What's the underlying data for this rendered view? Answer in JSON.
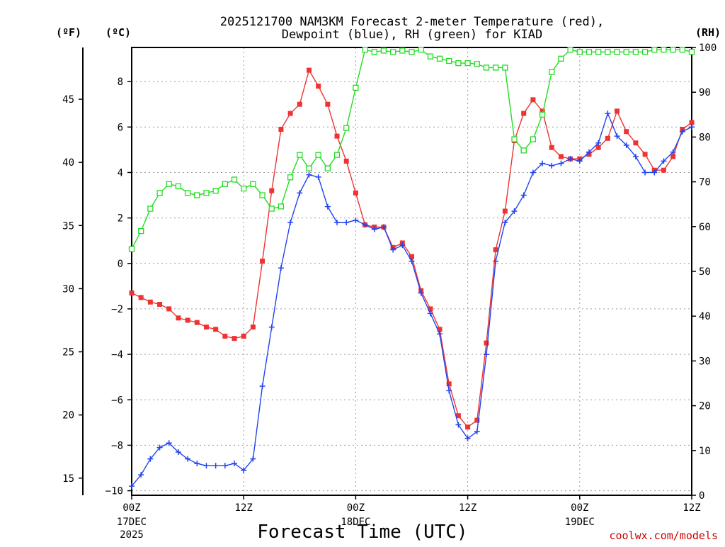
{
  "chart_data": {
    "type": "line",
    "title_line1": "2025121700 NAM3KM Forecast 2-meter Temperature (red),",
    "title_line2": "Dewpoint (blue), RH (green) for KIAD",
    "xlabel": "Forecast Time (UTC)",
    "credit": "coolwx.com/models",
    "units": {
      "fahrenheit": "(ºF)",
      "celsius": "(ºC)",
      "rh": "(RH)"
    },
    "x_unit": "hours from 00Z 17DEC 2025",
    "xlim": [
      0,
      60
    ],
    "ylim_celsius": [
      -10.2,
      9.5
    ],
    "ylim_rh": [
      0,
      100
    ],
    "grid": true,
    "x_ticks": [
      {
        "value": 0,
        "label": "00Z",
        "label2": "17DEC",
        "label3": "2025"
      },
      {
        "value": 12,
        "label": "12Z",
        "label2": "",
        "label3": ""
      },
      {
        "value": 24,
        "label": "00Z",
        "label2": "18DEC",
        "label3": ""
      },
      {
        "value": 36,
        "label": "12Z",
        "label2": "",
        "label3": ""
      },
      {
        "value": 48,
        "label": "00Z",
        "label2": "19DEC",
        "label3": ""
      },
      {
        "value": 60,
        "label": "12Z",
        "label2": "",
        "label3": ""
      }
    ],
    "y_ticks_celsius": [
      -10,
      -8,
      -6,
      -4,
      -2,
      0,
      2,
      4,
      6,
      8
    ],
    "y_tick_labels_celsius": [
      "−10",
      "−8",
      "−6",
      "−4",
      "−2",
      "0",
      "2",
      "4",
      "6",
      "8"
    ],
    "y_ticks_fahrenheit": [
      15,
      20,
      25,
      30,
      35,
      40,
      45
    ],
    "y_ticks_rh": [
      0,
      10,
      20,
      30,
      40,
      50,
      60,
      70,
      80,
      90,
      100
    ],
    "series": [
      {
        "name": "Temperature",
        "color": "#ee3333",
        "marker": "filled-square",
        "axis": "celsius",
        "x": [
          0,
          1,
          2,
          3,
          4,
          5,
          6,
          7,
          8,
          9,
          10,
          11,
          12,
          13,
          14,
          15,
          16,
          17,
          18,
          19,
          20,
          21,
          22,
          23,
          24,
          25,
          26,
          27,
          28,
          29,
          30,
          31,
          32,
          33,
          34,
          35,
          36,
          37,
          38,
          39,
          40,
          41,
          42,
          43,
          44,
          45,
          46,
          47,
          48,
          49,
          50,
          51,
          52,
          53,
          54,
          55,
          56,
          57,
          58,
          59,
          60
        ],
        "values": [
          -1.3,
          -1.5,
          -1.7,
          -1.8,
          -2.0,
          -2.4,
          -2.5,
          -2.6,
          -2.8,
          -2.9,
          -3.2,
          -3.3,
          -3.2,
          -2.8,
          0.1,
          3.2,
          5.9,
          6.6,
          7.0,
          8.5,
          7.8,
          7.0,
          5.6,
          4.5,
          3.1,
          1.7,
          1.6,
          1.6,
          0.7,
          0.9,
          0.3,
          -1.2,
          -2.0,
          -2.9,
          -5.3,
          -6.7,
          -7.2,
          -6.9,
          -3.5,
          0.6,
          2.3,
          5.4,
          6.6,
          7.2,
          6.7,
          5.1,
          4.7,
          4.6,
          4.6,
          4.8,
          5.1,
          5.5,
          6.7,
          5.8,
          5.3,
          4.8,
          4.1,
          4.1,
          4.7,
          5.9,
          6.2
        ]
      },
      {
        "name": "Dewpoint",
        "color": "#2244ee",
        "marker": "plus",
        "axis": "celsius",
        "x": [
          0,
          1,
          2,
          3,
          4,
          5,
          6,
          7,
          8,
          9,
          10,
          11,
          12,
          13,
          14,
          15,
          16,
          17,
          18,
          19,
          20,
          21,
          22,
          23,
          24,
          25,
          26,
          27,
          28,
          29,
          30,
          31,
          32,
          33,
          34,
          35,
          36,
          37,
          38,
          39,
          40,
          41,
          42,
          43,
          44,
          45,
          46,
          47,
          48,
          49,
          50,
          51,
          52,
          53,
          54,
          55,
          56,
          57,
          58,
          59,
          60
        ],
        "values": [
          -9.8,
          -9.3,
          -8.6,
          -8.1,
          -7.9,
          -8.3,
          -8.6,
          -8.8,
          -8.9,
          -8.9,
          -8.9,
          -8.8,
          -9.1,
          -8.6,
          -5.4,
          -2.8,
          -0.2,
          1.8,
          3.1,
          3.9,
          3.8,
          2.5,
          1.8,
          1.8,
          1.9,
          1.7,
          1.5,
          1.6,
          0.6,
          0.8,
          0.1,
          -1.3,
          -2.2,
          -3.1,
          -5.6,
          -7.1,
          -7.7,
          -7.4,
          -4.0,
          0.1,
          1.8,
          2.3,
          3.0,
          4.0,
          4.4,
          4.3,
          4.4,
          4.6,
          4.5,
          4.9,
          5.3,
          6.6,
          5.6,
          5.2,
          4.7,
          4.0,
          4.0,
          4.5,
          4.9,
          5.8,
          6.0
        ]
      },
      {
        "name": "RH",
        "color": "#22dd22",
        "marker": "open-square",
        "axis": "rh",
        "x": [
          0,
          1,
          2,
          3,
          4,
          5,
          6,
          7,
          8,
          9,
          10,
          11,
          12,
          13,
          14,
          15,
          16,
          17,
          18,
          19,
          20,
          21,
          22,
          23,
          24,
          25,
          26,
          27,
          28,
          29,
          30,
          31,
          32,
          33,
          34,
          35,
          36,
          37,
          38,
          39,
          40,
          41,
          42,
          43,
          44,
          45,
          46,
          47,
          48,
          49,
          50,
          51,
          52,
          53,
          54,
          55,
          56,
          57,
          58,
          59,
          60
        ],
        "values": [
          55,
          59,
          64,
          67.5,
          69.5,
          69,
          67.5,
          67,
          67.5,
          68,
          69.5,
          70.5,
          68.5,
          69.5,
          67,
          64,
          64.5,
          71,
          76,
          73,
          76,
          73,
          76,
          82,
          91,
          99.5,
          99,
          99.3,
          99,
          99.3,
          99,
          99.5,
          98,
          97.5,
          97,
          96.5,
          96.5,
          96.3,
          95.5,
          95.5,
          95.5,
          79.5,
          77,
          79.5,
          85,
          94.5,
          97.5,
          99.5,
          99,
          99,
          99,
          99,
          99,
          99,
          99,
          99,
          99.5,
          99.5,
          99.5,
          99.5,
          99
        ]
      }
    ]
  }
}
